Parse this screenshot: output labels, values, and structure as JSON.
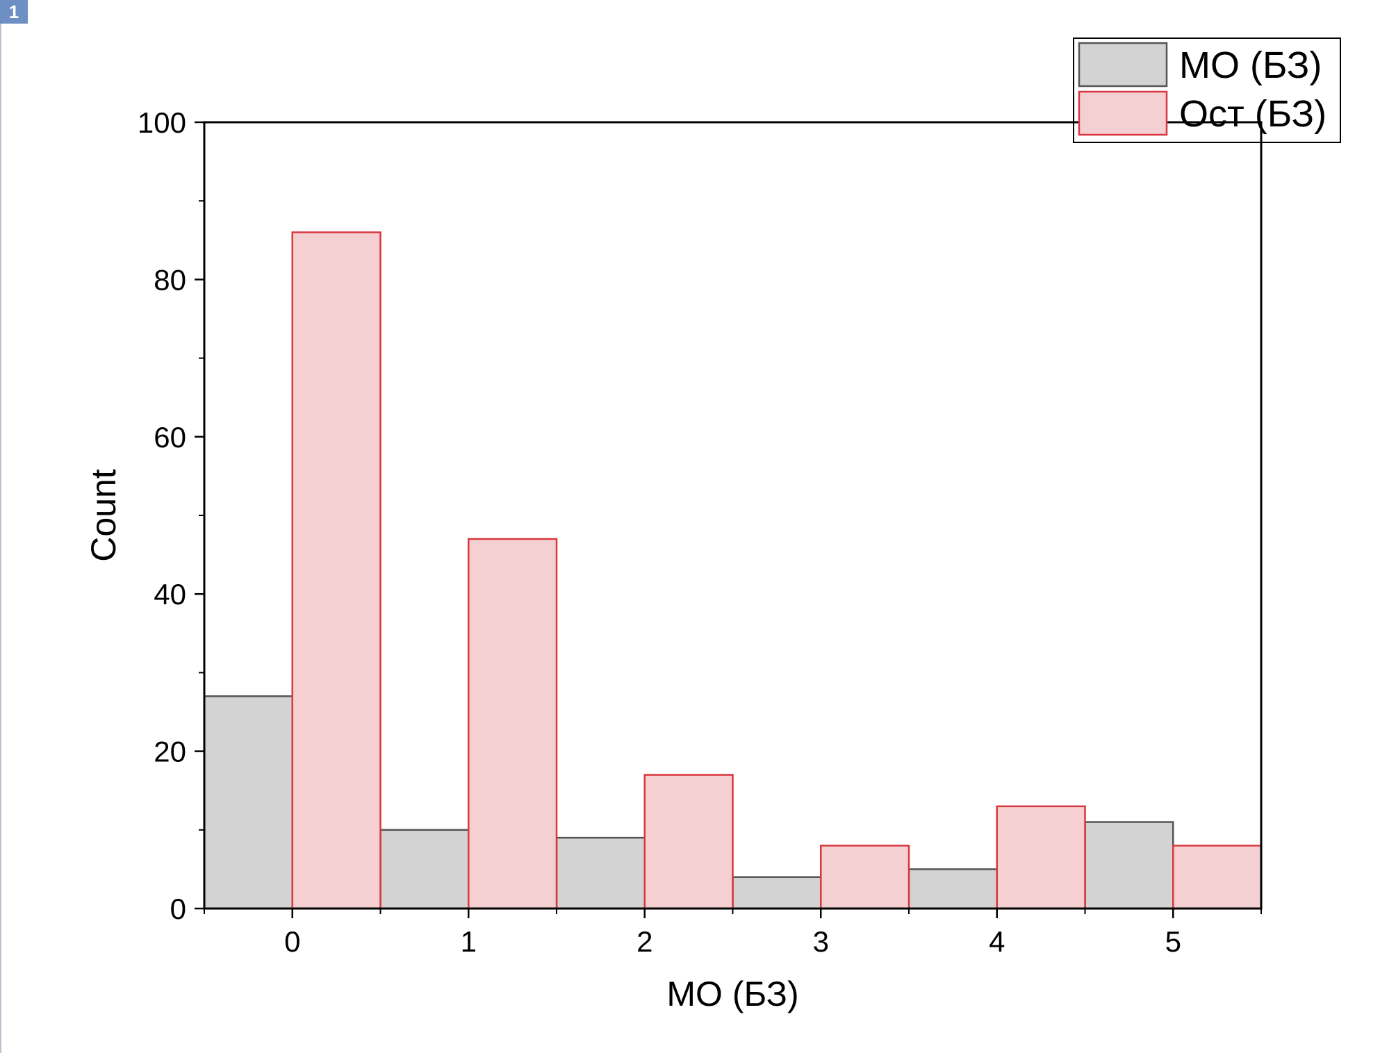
{
  "layer": {
    "label": "1"
  },
  "chart_data": {
    "type": "bar",
    "xlabel": "МО (БЗ)",
    "ylabel": "Count",
    "ylim": [
      0,
      100
    ],
    "xlim": [
      -0.5,
      5.5
    ],
    "x_ticks": [
      "0",
      "1",
      "2",
      "3",
      "4",
      "5"
    ],
    "y_ticks": [
      "0",
      "20",
      "40",
      "60",
      "80",
      "100"
    ],
    "legend_position": "top-right",
    "series": [
      {
        "name": "МО (БЗ)",
        "fill": "#d3d3d3",
        "stroke": "#555555",
        "bins": [
          {
            "start": -0.5,
            "end": 0.0,
            "value": 27
          },
          {
            "start": 0.5,
            "end": 1.0,
            "value": 10
          },
          {
            "start": 1.5,
            "end": 2.0,
            "value": 9
          },
          {
            "start": 2.5,
            "end": 3.0,
            "value": 4
          },
          {
            "start": 3.5,
            "end": 4.0,
            "value": 5
          },
          {
            "start": 4.5,
            "end": 5.0,
            "value": 11
          }
        ]
      },
      {
        "name": "Ост (БЗ)",
        "fill": "#f4d0d2",
        "stroke": "#d9363e",
        "bins": [
          {
            "start": 0.0,
            "end": 0.5,
            "value": 86
          },
          {
            "start": 1.0,
            "end": 1.5,
            "value": 47
          },
          {
            "start": 2.0,
            "end": 2.5,
            "value": 17
          },
          {
            "start": 3.0,
            "end": 3.5,
            "value": 8
          },
          {
            "start": 4.0,
            "end": 4.5,
            "value": 13
          },
          {
            "start": 5.0,
            "end": 5.5,
            "value": 8
          }
        ]
      }
    ]
  }
}
